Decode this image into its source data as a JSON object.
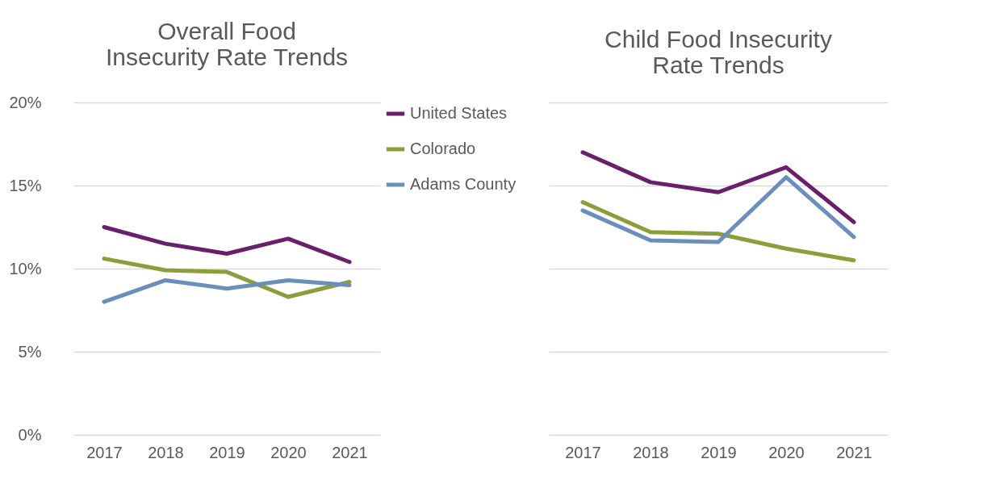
{
  "chart_data": [
    {
      "type": "line",
      "title": "Overall Food Insecurity Rate Trends",
      "categories": [
        "2017",
        "2018",
        "2019",
        "2020",
        "2021"
      ],
      "series": [
        {
          "name": "United States",
          "color": "#68206a",
          "values": [
            12.5,
            11.5,
            10.9,
            11.8,
            10.4
          ]
        },
        {
          "name": "Colorado",
          "color": "#8b9e3b",
          "values": [
            10.6,
            9.9,
            9.8,
            8.3,
            9.2
          ]
        },
        {
          "name": "Adams County",
          "color": "#6a8fbd",
          "values": [
            8.0,
            9.3,
            8.8,
            9.3,
            9.0
          ]
        }
      ],
      "ylim": [
        0,
        20
      ],
      "yticks": [
        {
          "value": 0,
          "label": "0%"
        },
        {
          "value": 5,
          "label": "5%"
        },
        {
          "value": 10,
          "label": "10%"
        },
        {
          "value": 15,
          "label": "15%"
        },
        {
          "value": 20,
          "label": "20%"
        }
      ],
      "grid": "y",
      "legend": "right",
      "marker": "none",
      "line_style": "solid"
    },
    {
      "type": "line",
      "title": "Child Food Insecurity Rate Trends",
      "categories": [
        "2017",
        "2018",
        "2019",
        "2020",
        "2021"
      ],
      "series": [
        {
          "color": "#68206a",
          "values": [
            17.0,
            15.2,
            14.6,
            16.1,
            12.8
          ]
        },
        {
          "color": "#8b9e3b",
          "values": [
            14.0,
            12.2,
            12.1,
            11.2,
            10.5
          ]
        },
        {
          "color": "#6a8fbd",
          "values": [
            13.5,
            11.7,
            11.6,
            15.5,
            11.9
          ]
        }
      ],
      "ylim": [
        0,
        20
      ],
      "yticks": [
        {
          "value": 0,
          "label": null
        },
        {
          "value": 5,
          "label": null
        },
        {
          "value": 10,
          "label": null
        },
        {
          "value": 15,
          "label": null
        },
        {
          "value": 20,
          "label": null
        }
      ],
      "grid": "y",
      "tick_labels": "x",
      "legend": false,
      "marker": "none",
      "line_style": "solid"
    }
  ]
}
